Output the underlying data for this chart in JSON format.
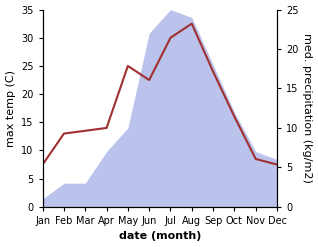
{
  "months": [
    "Jan",
    "Feb",
    "Mar",
    "Apr",
    "May",
    "Jun",
    "Jul",
    "Aug",
    "Sep",
    "Oct",
    "Nov",
    "Dec"
  ],
  "temperature": [
    7.5,
    13.0,
    13.5,
    14.0,
    25.0,
    22.5,
    30.0,
    32.5,
    24.0,
    16.0,
    8.5,
    7.5
  ],
  "precipitation": [
    1.0,
    3.0,
    3.0,
    7.0,
    10.0,
    22.0,
    25.0,
    24.0,
    18.0,
    12.0,
    7.0,
    6.0
  ],
  "temp_color": "#a03030",
  "precip_color": "#b0b8e8",
  "temp_ylim": [
    0,
    35
  ],
  "precip_ylim": [
    0,
    25
  ],
  "temp_yticks": [
    0,
    5,
    10,
    15,
    20,
    25,
    30,
    35
  ],
  "precip_yticks": [
    0,
    5,
    10,
    15,
    20,
    25
  ],
  "xlabel": "date (month)",
  "ylabel_left": "max temp (C)",
  "ylabel_right": "med. precipitation (kg/m2)",
  "bg_color": "#ffffff",
  "label_fontsize": 8,
  "tick_fontsize": 7,
  "temp_scale": 35,
  "precip_scale": 25
}
